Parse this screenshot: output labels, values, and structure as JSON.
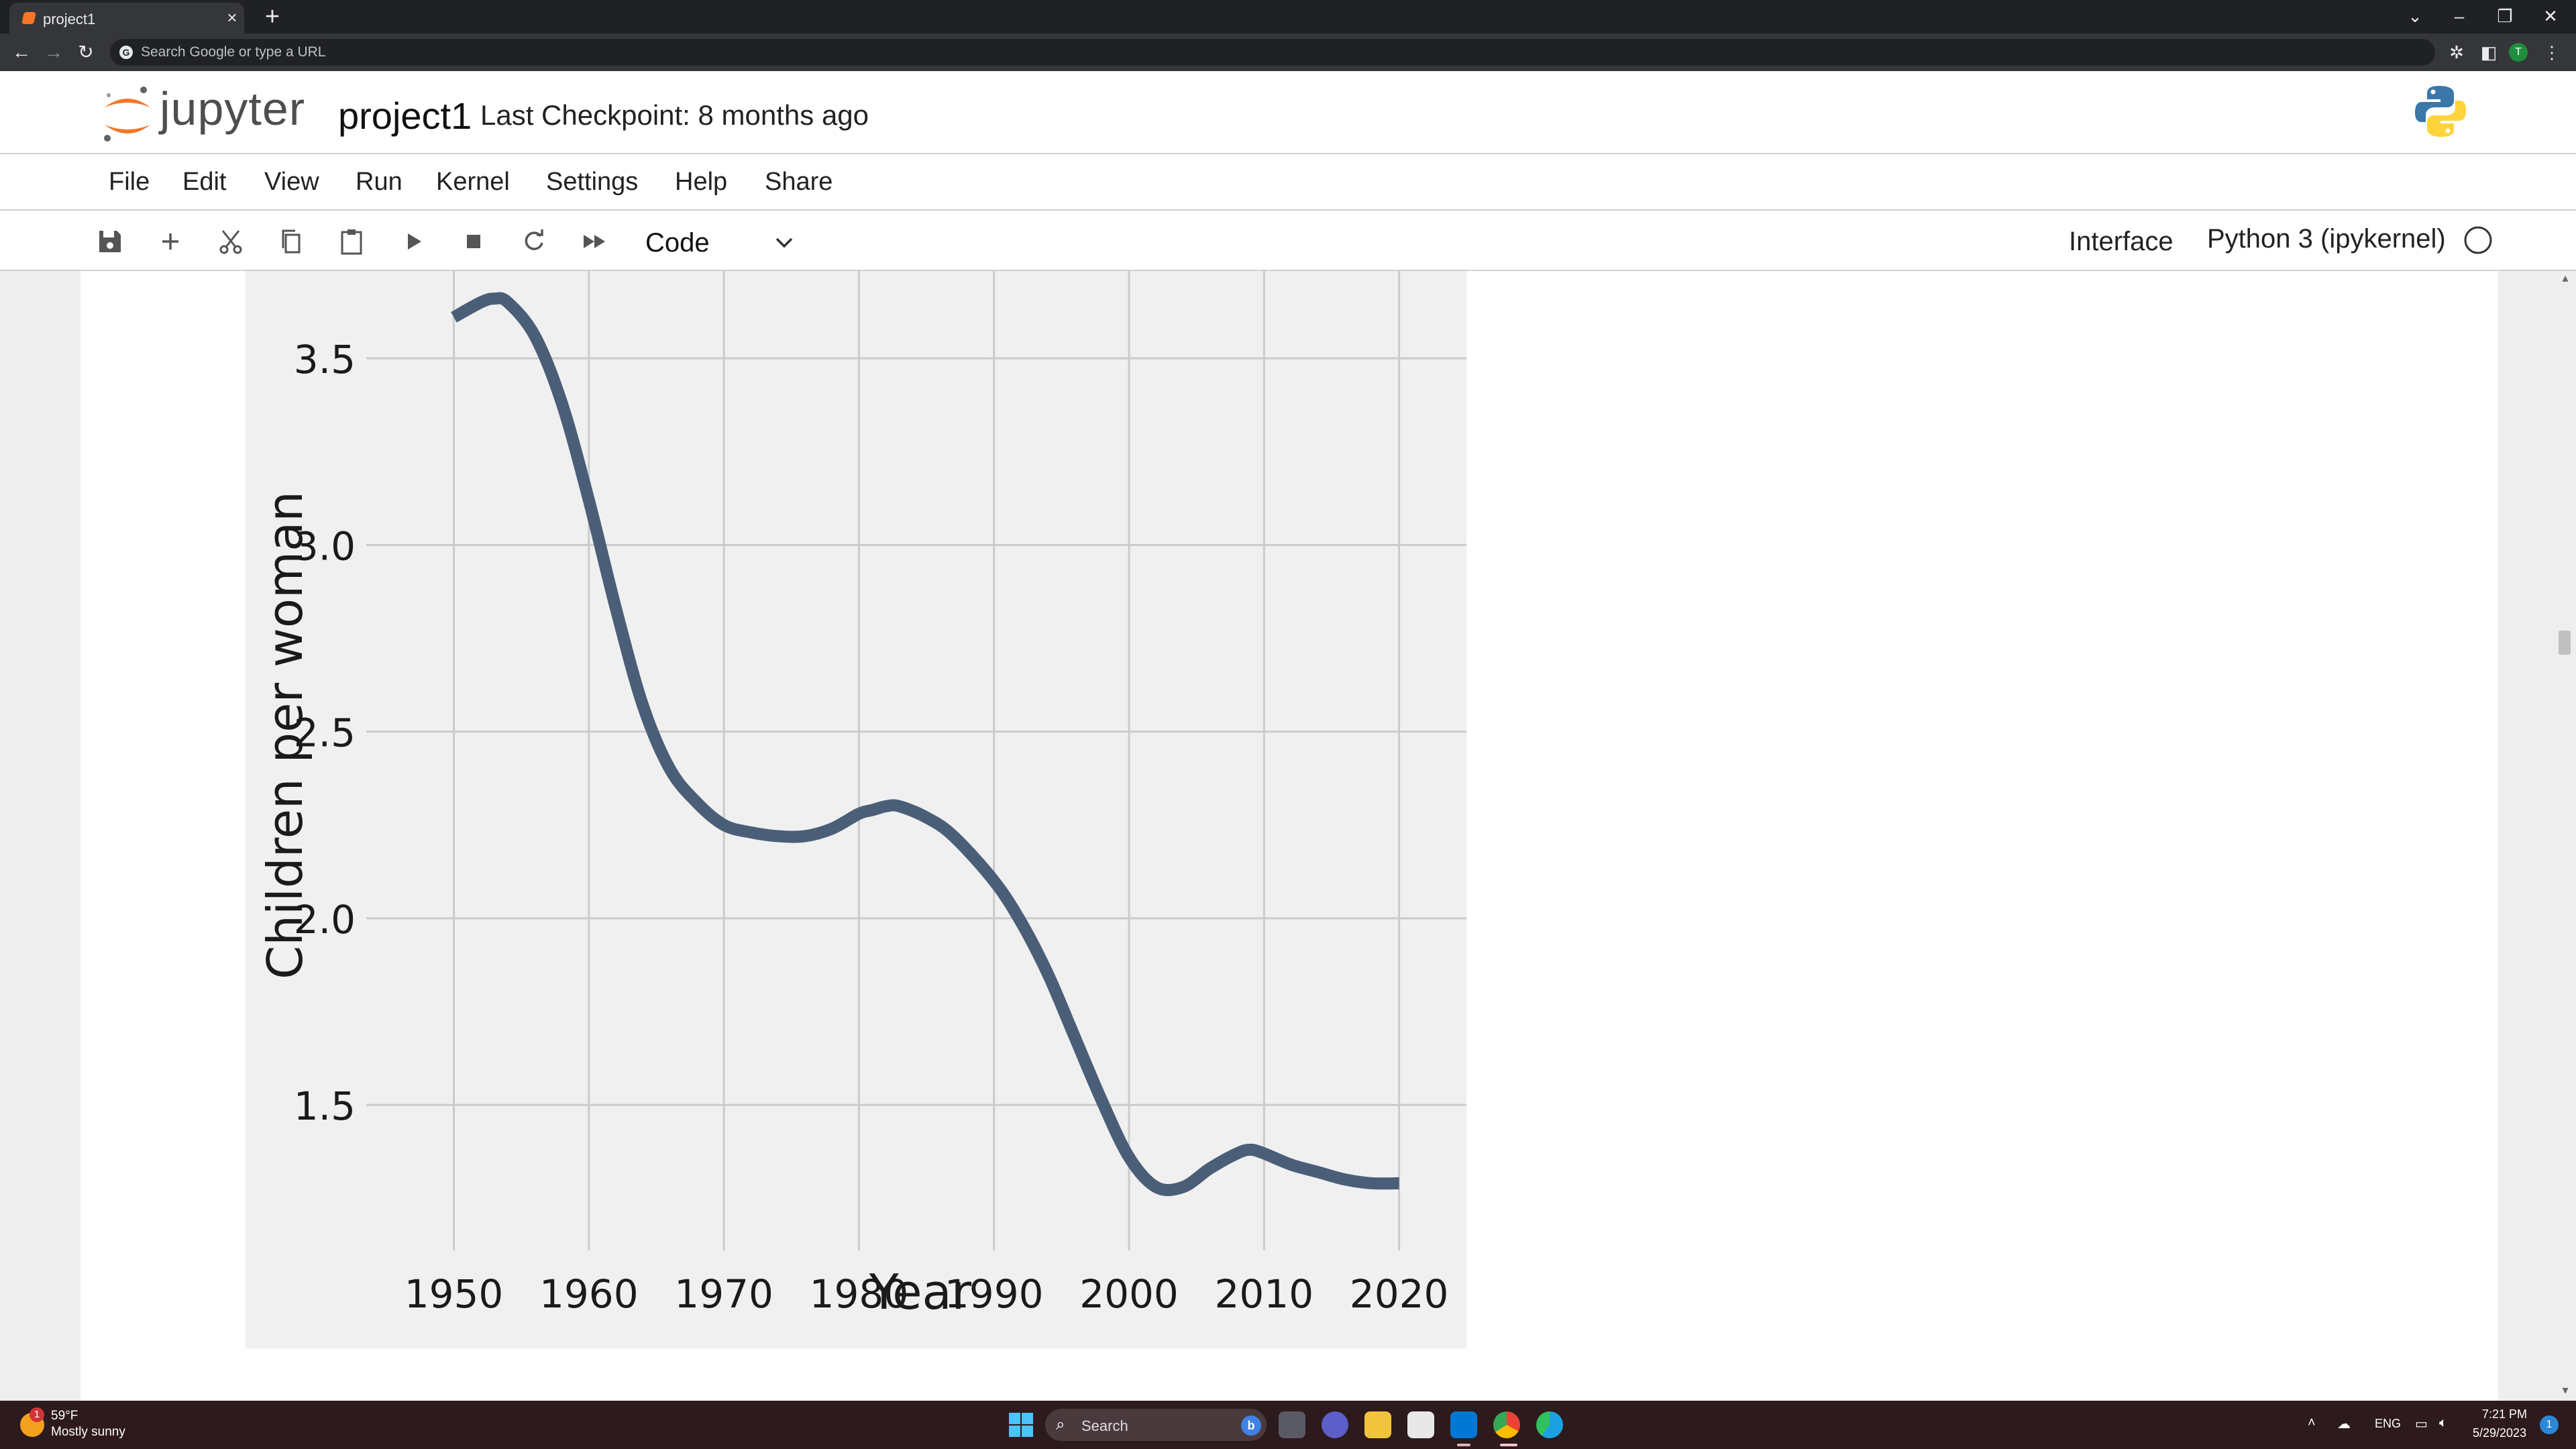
{
  "browser": {
    "tab_title": "project1",
    "tab_close": "×",
    "new_tab": "+",
    "omnibox_placeholder": "Search Google or type a URL",
    "profile_initial": "T",
    "window_controls": {
      "list": "⌄",
      "minimize": "–",
      "restore": "❐",
      "close": "✕"
    }
  },
  "jupyter": {
    "wordmark": "jupyter",
    "notebook_title": "project1",
    "checkpoint": "Last Checkpoint: 8 months ago",
    "menu": [
      "File",
      "Edit",
      "View",
      "Run",
      "Kernel",
      "Settings",
      "Help",
      "Share"
    ],
    "toolbar": {
      "cell_type": "Code",
      "interface_label": "Interface",
      "kernel_label": "Python 3 (ipykernel)"
    },
    "colors": {
      "orange": "#f37726",
      "line": "#4a5e78",
      "plot_bg": "#f0f0f0"
    }
  },
  "chart_data": {
    "type": "line",
    "title": "",
    "xlabel": "Year",
    "ylabel": "Children per woman",
    "xlim": [
      1946,
      2023
    ],
    "ylim": [
      1.2,
      3.68
    ],
    "xticks": [
      1950,
      1960,
      1970,
      1980,
      1990,
      2000,
      2010,
      2020
    ],
    "yticks": [
      1.5,
      2.0,
      2.5,
      3.0,
      3.5
    ],
    "xtick_labels": [
      "1950",
      "1960",
      "1970",
      "1980",
      "1990",
      "2000",
      "2010",
      "2020"
    ],
    "ytick_labels": [
      "1.5",
      "2.0",
      "2.5",
      "3.0",
      "3.5"
    ],
    "grid": true,
    "series": [
      {
        "x": [
          1950,
          1952,
          1953,
          1954,
          1956,
          1958,
          1960,
          1962,
          1964,
          1966,
          1968,
          1970,
          1972,
          1974,
          1976,
          1978,
          1980,
          1981,
          1982,
          1983,
          1985,
          1987,
          1990,
          1992,
          1994,
          1996,
          1998,
          2000,
          2002,
          2004,
          2006,
          2008,
          2009,
          2010,
          2012,
          2014,
          2016,
          2018,
          2020
        ],
        "y": [
          3.61,
          3.65,
          3.66,
          3.65,
          3.56,
          3.38,
          3.12,
          2.83,
          2.57,
          2.4,
          2.31,
          2.25,
          2.23,
          2.22,
          2.22,
          2.24,
          2.28,
          2.29,
          2.3,
          2.3,
          2.27,
          2.22,
          2.1,
          1.99,
          1.85,
          1.68,
          1.51,
          1.36,
          1.28,
          1.28,
          1.33,
          1.37,
          1.38,
          1.37,
          1.34,
          1.32,
          1.3,
          1.29,
          1.29
        ],
        "color": "#4a5e78"
      }
    ]
  },
  "taskbar": {
    "weather_badge": "1",
    "weather_temp": "59°F",
    "weather_desc": "Mostly sunny",
    "search_label": "Search",
    "bing_letter": "b",
    "language": "ENG",
    "time": "7:21 PM",
    "date": "5/29/2023",
    "notifications": "1"
  }
}
